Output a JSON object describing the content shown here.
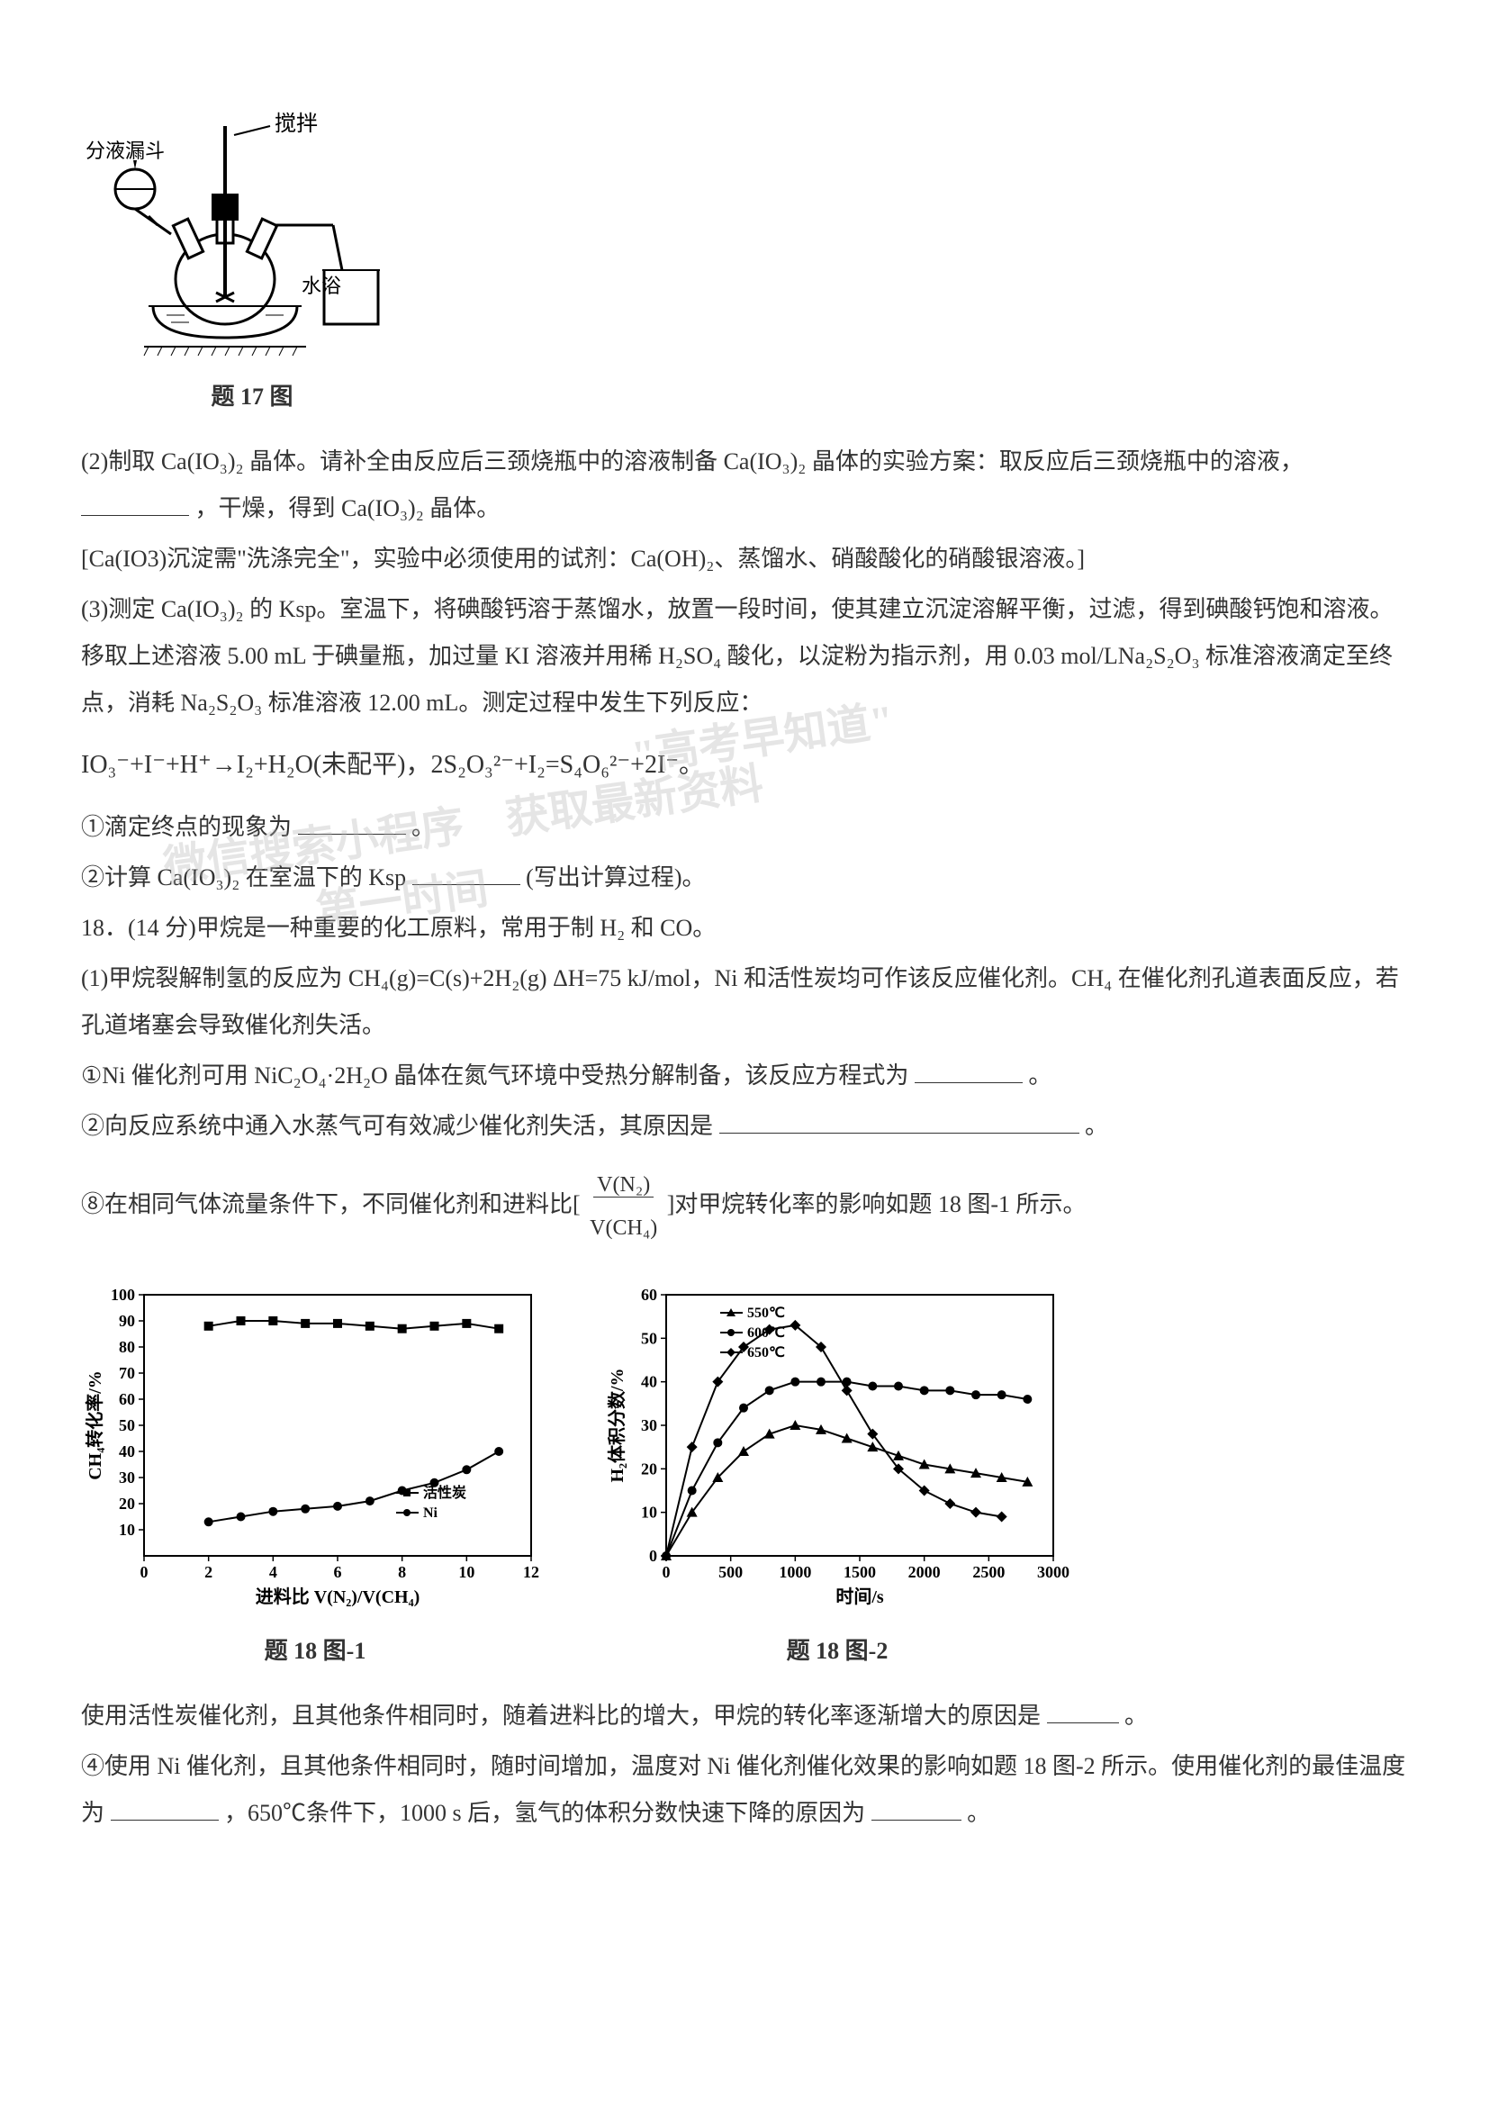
{
  "diagram1": {
    "labels": {
      "stirrer": "搅拌",
      "funnel": "分液漏斗",
      "waterbath": "水浴"
    },
    "caption": "题 17 图"
  },
  "paragraphs": {
    "p2_prefix": "(2)制取 Ca(IO₃)₂ 晶体。请补全由反应后三颈烧瓶中的溶液制备 Ca(IO₃)₂ 晶体的实验方案：取反应后三颈烧瓶中的溶液，",
    "p2_suffix": "，干燥，得到 Ca(IO₃)₂ 晶体。",
    "p2_note": "[Ca(IO3)沉淀需\"洗涤完全\"，实验中必须使用的试剂：Ca(OH)₂、蒸馏水、硝酸酸化的硝酸银溶液。]",
    "p3_a": "(3)测定 Ca(IO₃)₂ 的 Ksp。室温下，将碘酸钙溶于蒸馏水，放置一段时间，使其建立沉淀溶解平衡，过滤，得到碘酸钙饱和溶液。移取上述溶液 5.00 mL 于碘量瓶，加过量 KI 溶液并用稀 H₂SO₄ 酸化，以淀粉为指示剂，用 0.03 mol/LNa₂S₂O₃ 标准溶液滴定至终点，消耗 Na₂S₂O₃ 标准溶液 12.00 mL。测定过程中发生下列反应：",
    "formula": "IO₃⁻+I⁻+H⁺→I₂+H₂O(未配平)，2S₂O₃²⁻+I₂=S₄O₆²⁻+2I⁻。",
    "q1_prefix": "①滴定终点的现象为",
    "q1_suffix": "。",
    "q2_prefix": "②计算 Ca(IO₃)₂ 在室温下的 Ksp",
    "q2_suffix": "(写出计算过程)。",
    "p18_intro": "18．(14 分)甲烷是一种重要的化工原料，常用于制 H₂ 和 CO。",
    "p18_1": "(1)甲烷裂解制氢的反应为 CH₄(g)=C(s)+2H₂(g)   ΔH=75 kJ/mol，Ni 和活性炭均可作该反应催化剂。CH₄ 在催化剂孔道表面反应，若孔道堵塞会导致催化剂失活。",
    "q18_1_prefix": "①Ni 催化剂可用 NiC₂O₄·2H₂O 晶体在氮气环境中受热分解制备，该反应方程式为",
    "q18_1_suffix": "。",
    "q18_2_prefix": "②向反应系统中通入水蒸气可有效减少催化剂失活，其原因是",
    "q18_2_suffix": "。",
    "q18_3_prefix": "⑧在相同气体流量条件下，不同催化剂和进料比[",
    "q18_3_suffix": "]对甲烷转化率的影响如题 18 图-1 所示。",
    "frac_num": "V(N₂)",
    "frac_den": "V(CH₄)",
    "q18_after_prefix": "使用活性炭催化剂，且其他条件相同时，随着进料比的增大，甲烷的转化率逐渐增大的原因是",
    "q18_after_suffix": "。",
    "q18_4_a": "④使用 Ni 催化剂，且其他条件相同时，随时间增加，温度对 Ni 催化剂催化效果的影响如题 18 图-2 所示。使用催化剂的最佳温度为",
    "q18_4_b": "，650℃条件下，1000 s 后，氢气的体积分数快速下降的原因为",
    "q18_4_c": "。"
  },
  "watermarks": {
    "w1": "\"高考早知道\"",
    "w2": "获取最新资料",
    "w3": "微信搜索小程序",
    "w4": "第一时间"
  },
  "chart1": {
    "type": "line",
    "caption": "题 18 图-1",
    "xlabel": "进料比 V(N₂)/V(CH₄)",
    "ylabel": "CH₄转化率/%",
    "xlim": [
      0,
      12
    ],
    "ylim": [
      0,
      100
    ],
    "xtick_step": 2,
    "ytick_step": 10,
    "ytick_start": 10,
    "background_color": "#ffffff",
    "axis_color": "#000000",
    "series": [
      {
        "name": "活性炭",
        "marker": "square",
        "color": "#000000",
        "x": [
          2,
          3,
          4,
          5,
          6,
          7,
          8,
          9,
          10,
          11
        ],
        "y": [
          88,
          90,
          90,
          89,
          89,
          88,
          87,
          88,
          89,
          87
        ]
      },
      {
        "name": "Ni",
        "marker": "circle",
        "color": "#000000",
        "x": [
          2,
          3,
          4,
          5,
          6,
          7,
          8,
          9,
          10,
          11
        ],
        "y": [
          13,
          15,
          17,
          18,
          19,
          21,
          25,
          28,
          33,
          40
        ]
      }
    ],
    "legend_labels": [
      "活性炭",
      "Ni"
    ],
    "label_fontsize": 20,
    "tick_fontsize": 18
  },
  "chart2": {
    "type": "line",
    "caption": "题 18 图-2",
    "xlabel": "时间/s",
    "ylabel": "H₂体积分数/%",
    "xlim": [
      0,
      3000
    ],
    "ylim": [
      0,
      60
    ],
    "xtick_step": 500,
    "ytick_step": 10,
    "background_color": "#ffffff",
    "axis_color": "#000000",
    "series": [
      {
        "name": "550℃",
        "marker": "triangle",
        "color": "#000000",
        "x": [
          0,
          200,
          400,
          600,
          800,
          1000,
          1200,
          1400,
          1600,
          1800,
          2000,
          2200,
          2400,
          2600,
          2800
        ],
        "y": [
          0,
          10,
          18,
          24,
          28,
          30,
          29,
          27,
          25,
          23,
          21,
          20,
          19,
          18,
          17
        ]
      },
      {
        "name": "600℃",
        "marker": "circle",
        "color": "#000000",
        "x": [
          0,
          200,
          400,
          600,
          800,
          1000,
          1200,
          1400,
          1600,
          1800,
          2000,
          2200,
          2400,
          2600,
          2800
        ],
        "y": [
          0,
          15,
          26,
          34,
          38,
          40,
          40,
          40,
          39,
          39,
          38,
          38,
          37,
          37,
          36
        ]
      },
      {
        "name": "650℃",
        "marker": "diamond",
        "color": "#000000",
        "x": [
          0,
          200,
          400,
          600,
          800,
          1000,
          1200,
          1400,
          1600,
          1800,
          2000,
          2200,
          2400,
          2600
        ],
        "y": [
          0,
          25,
          40,
          48,
          52,
          53,
          48,
          38,
          28,
          20,
          15,
          12,
          10,
          9
        ]
      }
    ],
    "legend_labels": [
      "550℃",
      "600℃",
      "650℃"
    ],
    "label_fontsize": 20,
    "tick_fontsize": 18
  }
}
